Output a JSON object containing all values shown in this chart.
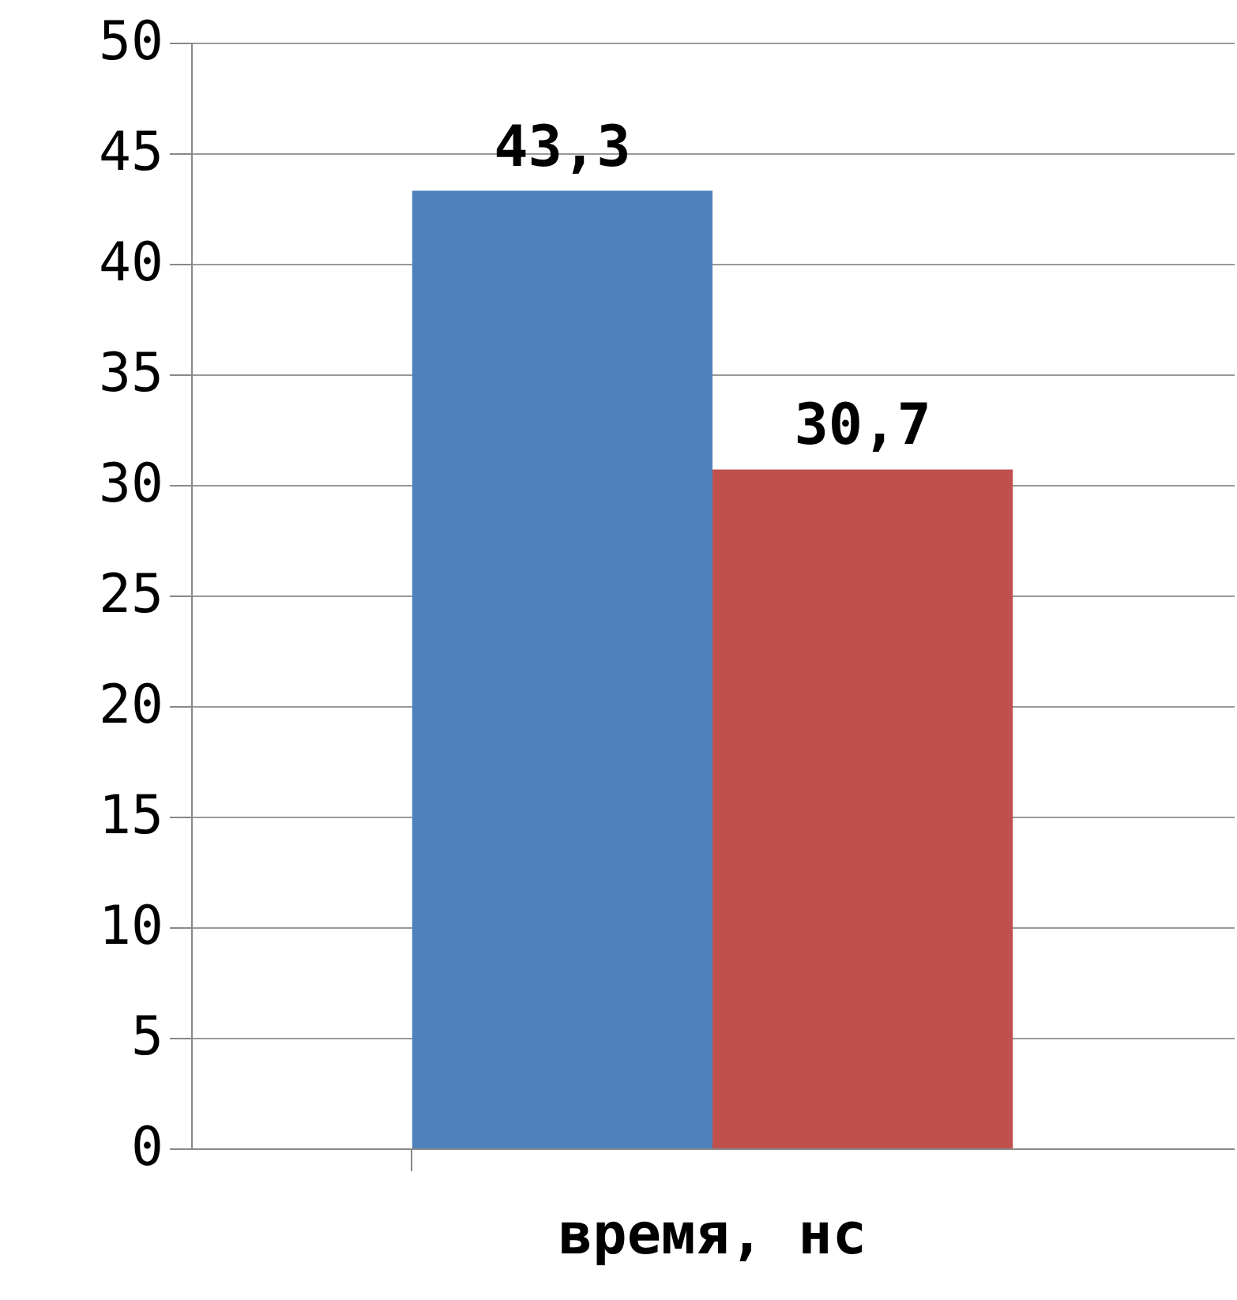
{
  "chart_data": {
    "type": "bar",
    "categories": [
      "время, нс"
    ],
    "series": [
      {
        "color": "#4f81bd",
        "values": [
          43.3
        ],
        "value_labels": [
          "43,3"
        ]
      },
      {
        "color": "#c0504d",
        "values": [
          30.7
        ],
        "value_labels": [
          "30,7"
        ]
      }
    ],
    "ylim": [
      0,
      50
    ],
    "yticks": [
      0,
      5,
      10,
      15,
      20,
      25,
      30,
      35,
      40,
      45,
      50
    ],
    "grid": "y"
  }
}
